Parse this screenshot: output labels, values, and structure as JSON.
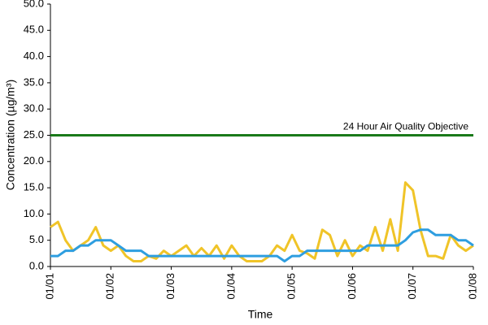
{
  "chart_data": {
    "type": "line",
    "xlabel": "Time",
    "ylabel": "Concentration (µg/m³)",
    "x": [
      0,
      0.125,
      0.25,
      0.375,
      0.5,
      0.625,
      0.75,
      0.875,
      1,
      1.125,
      1.25,
      1.375,
      1.5,
      1.625,
      1.75,
      1.875,
      2,
      2.125,
      2.25,
      2.375,
      2.5,
      2.625,
      2.75,
      2.875,
      3,
      3.125,
      3.25,
      3.375,
      3.5,
      3.625,
      3.75,
      3.875,
      4,
      4.125,
      4.25,
      4.375,
      4.5,
      4.625,
      4.75,
      4.875,
      5,
      5.125,
      5.25,
      5.375,
      5.5,
      5.625,
      5.75,
      5.875,
      6,
      6.125,
      6.25,
      6.375,
      6.5,
      6.625,
      6.75,
      6.875,
      7
    ],
    "series": [
      {
        "color": "#f0c428",
        "values": [
          7.5,
          8.5,
          5,
          3,
          4,
          5,
          7.5,
          4,
          3,
          4,
          2,
          1,
          1,
          2,
          1.5,
          3,
          2,
          3,
          4,
          2,
          3.5,
          2,
          4,
          1.5,
          4,
          2,
          1,
          1,
          1,
          2,
          4,
          3,
          6,
          3,
          2.5,
          1.5,
          7,
          6,
          2,
          5,
          2,
          4,
          3,
          7.5,
          3,
          9,
          3,
          16,
          14.5,
          7,
          2,
          2,
          1.5,
          6,
          4,
          3,
          4
        ]
      },
      {
        "color": "#2e9ee0",
        "values": [
          2,
          2,
          3,
          3,
          4,
          4,
          5,
          5,
          5,
          4,
          3,
          3,
          3,
          2,
          2,
          2,
          2,
          2,
          2,
          2,
          2,
          2,
          2,
          2,
          2,
          2,
          2,
          2,
          2,
          2,
          2,
          1,
          2,
          2,
          3,
          3,
          3,
          3,
          3,
          3,
          3,
          3,
          4,
          4,
          4,
          4,
          4,
          5,
          6.5,
          7,
          7,
          6,
          6,
          6,
          5,
          5,
          4
        ]
      }
    ],
    "threshold": {
      "value": 25,
      "label": "24 Hour Air Quality Objective",
      "color": "#1a7a1a"
    },
    "xlim": [
      0,
      7
    ],
    "xticks": [
      {
        "value": 0,
        "label": "01/01"
      },
      {
        "value": 1,
        "label": "01/02"
      },
      {
        "value": 2,
        "label": "01/03"
      },
      {
        "value": 3,
        "label": "01/04"
      },
      {
        "value": 4,
        "label": "01/05"
      },
      {
        "value": 5,
        "label": "01/06"
      },
      {
        "value": 6,
        "label": "01/07"
      },
      {
        "value": 7,
        "label": "01/08"
      }
    ],
    "ylim": [
      0,
      50
    ],
    "yticks": [
      {
        "value": 0,
        "label": "0.0"
      },
      {
        "value": 5,
        "label": "5.0"
      },
      {
        "value": 10,
        "label": "10.0"
      },
      {
        "value": 15,
        "label": "15.0"
      },
      {
        "value": 20,
        "label": "20.0"
      },
      {
        "value": 25,
        "label": "25.0"
      },
      {
        "value": 30,
        "label": "30.0"
      },
      {
        "value": 35,
        "label": "35.0"
      },
      {
        "value": 40,
        "label": "40.0"
      },
      {
        "value": 45,
        "label": "45.0"
      },
      {
        "value": 50,
        "label": "50.0"
      }
    ],
    "grid": false
  }
}
